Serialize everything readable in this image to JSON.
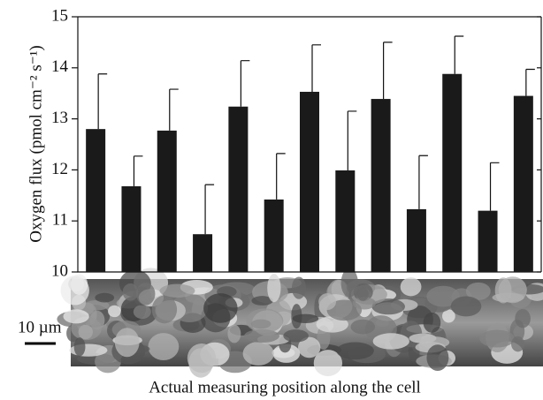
{
  "chart_data": {
    "type": "bar",
    "y_label": "Oxygen flux (pmol cm⁻² s⁻¹)",
    "x_label": "Actual measuring position along the cell",
    "scale_bar_label": "10 µm",
    "categories": [
      null,
      null,
      null,
      null,
      null,
      null,
      null,
      null,
      null,
      null,
      null,
      null,
      null
    ],
    "values": [
      12.8,
      11.68,
      12.77,
      10.74,
      13.24,
      11.42,
      13.53,
      11.99,
      13.39,
      11.23,
      13.88,
      11.2,
      13.45
    ],
    "errors": [
      1.08,
      0.59,
      0.81,
      0.97,
      0.9,
      0.9,
      0.92,
      1.16,
      1.11,
      1.05,
      0.74,
      0.94,
      0.52
    ],
    "color": "#1a1a1a",
    "ylim": [
      10,
      15
    ],
    "yticks": [
      10,
      11,
      12,
      13,
      14,
      15
    ],
    "grid": false
  }
}
